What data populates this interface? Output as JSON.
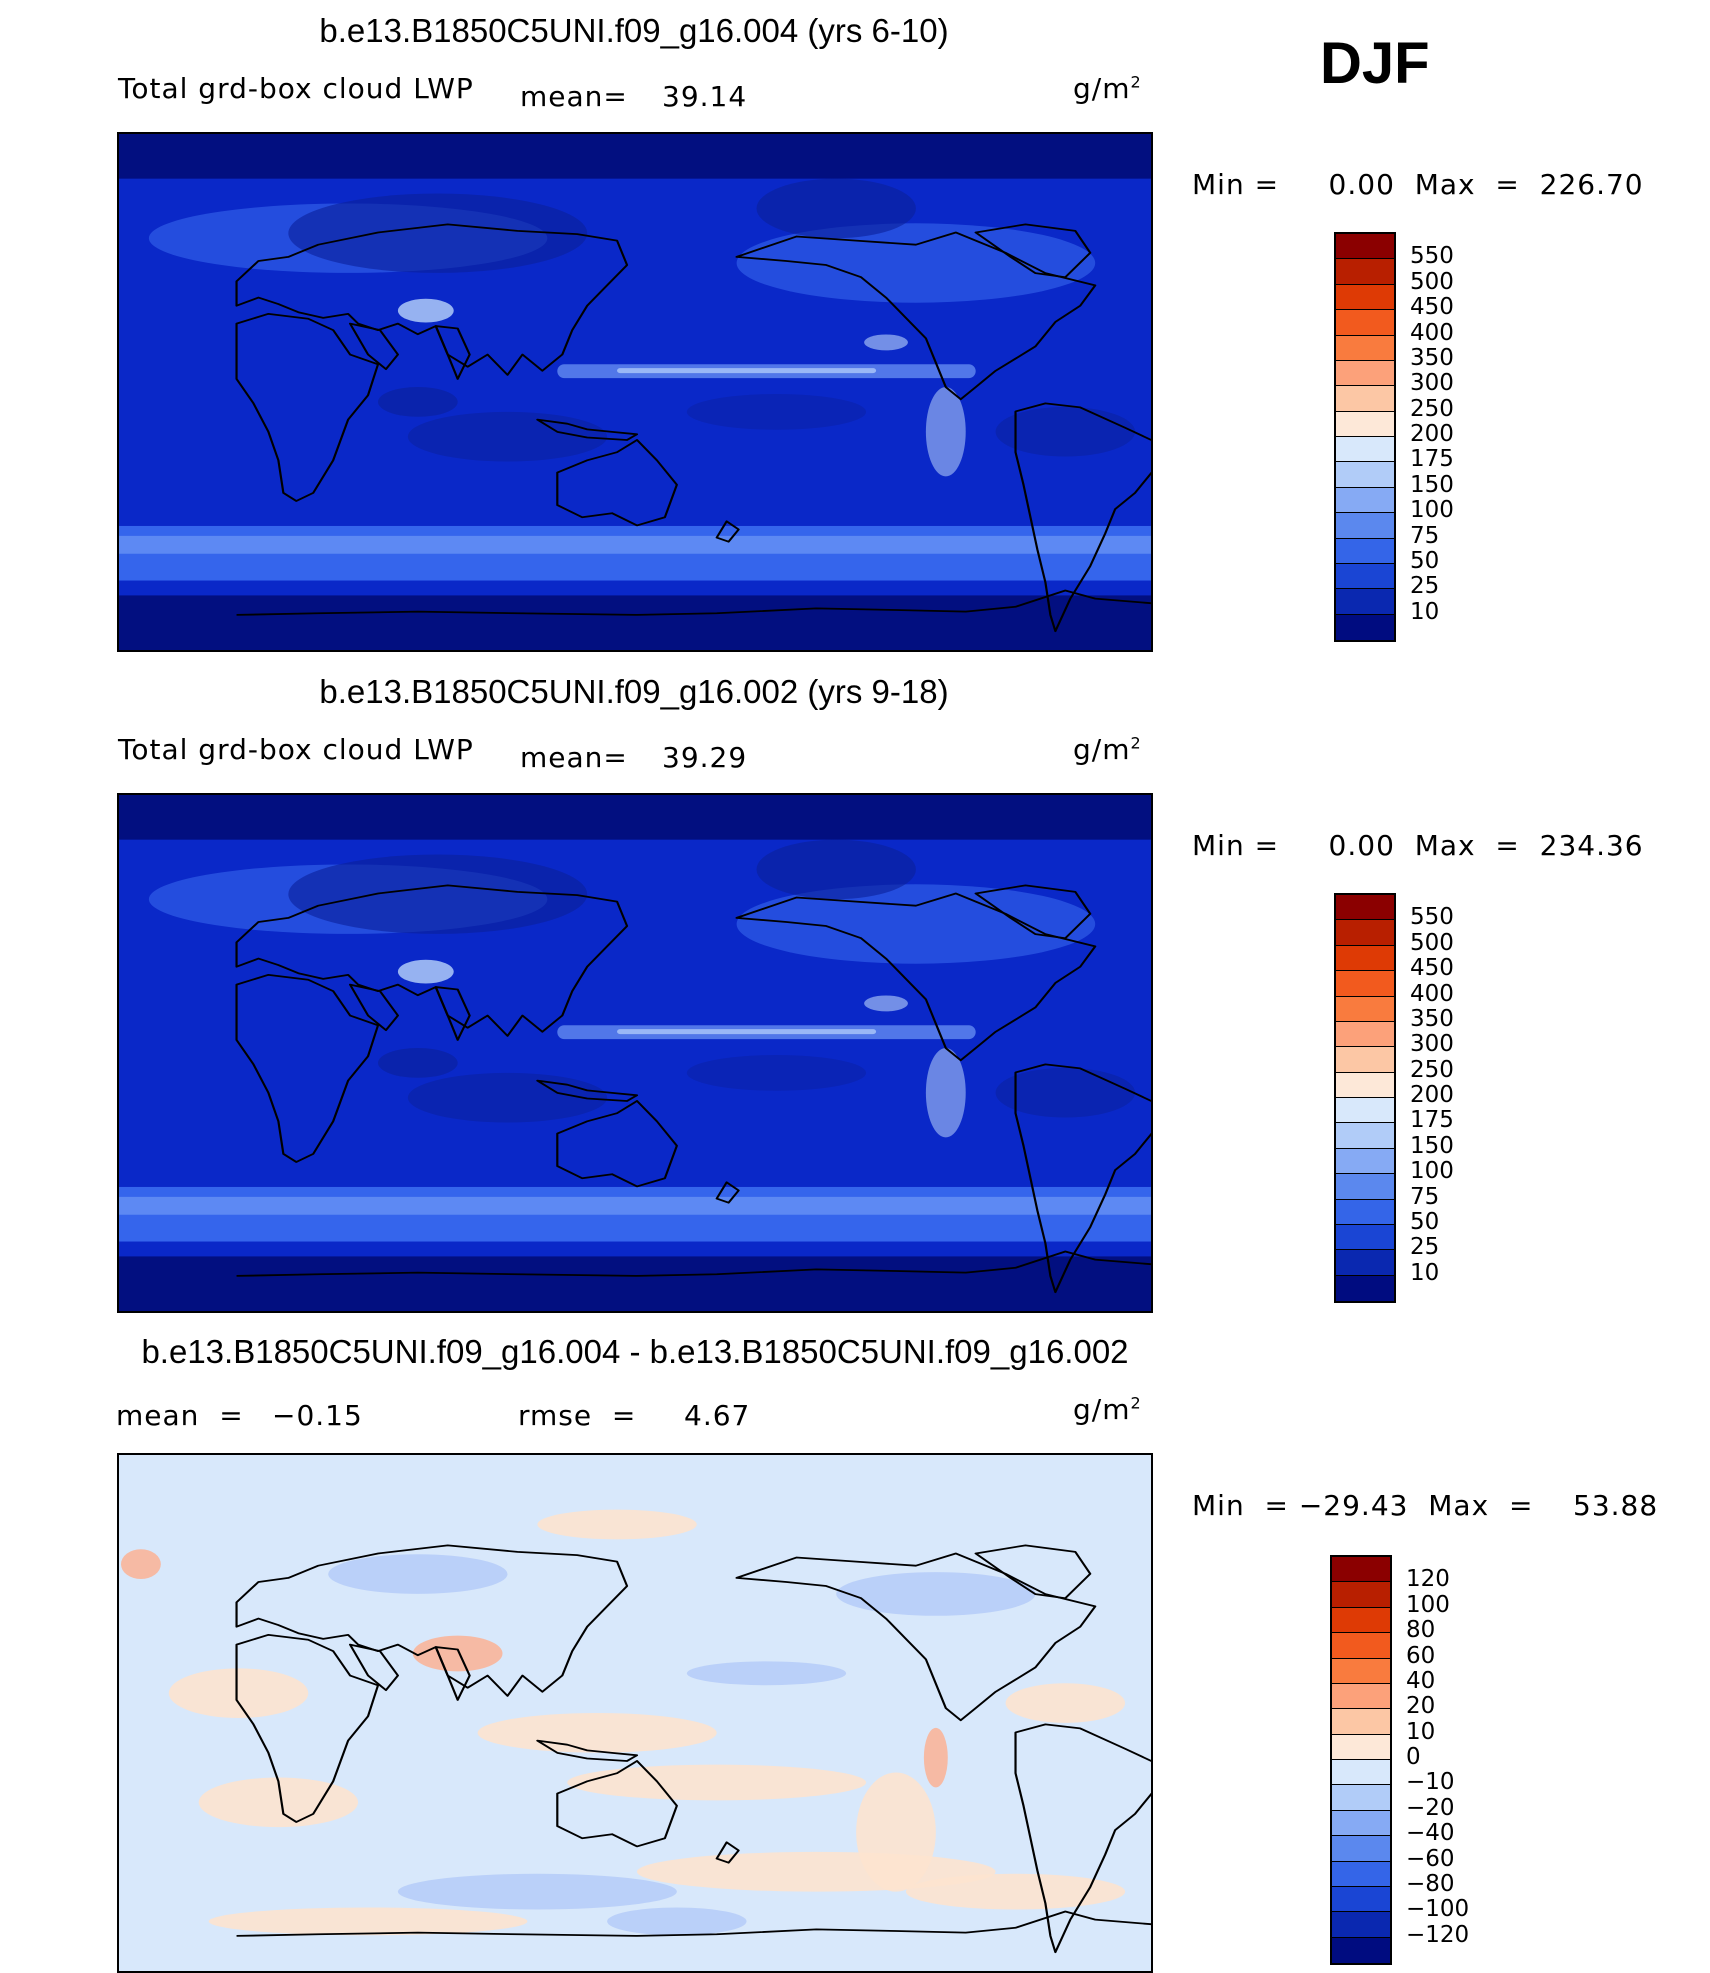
{
  "season": "DJF",
  "panels": [
    {
      "title": "b.e13.B1850C5UNI.f09_g16.004 (yrs 6-10)",
      "variable": "Total grd-box cloud LWP",
      "stats_label": "mean=",
      "stats_value": "39.14",
      "units": "g/m",
      "units_sup": "2",
      "minmax": "Min =     0.00  Max  =  226.70",
      "colorbar": {
        "labels": [
          "550",
          "500",
          "450",
          "400",
          "350",
          "300",
          "250",
          "200",
          "175",
          "150",
          "100",
          "75",
          "50",
          "25",
          "10"
        ],
        "colors": [
          "#8b0000",
          "#b81f00",
          "#de3a05",
          "#f25a1e",
          "#f97b3e",
          "#fca17a",
          "#fcc7a5",
          "#fde8d8",
          "#d8e8fb",
          "#b1ccf8",
          "#86aaf4",
          "#5b88ee",
          "#3465e8",
          "#1a45d4",
          "#0a28b0",
          "#000c80"
        ]
      }
    },
    {
      "title": "b.e13.B1850C5UNI.f09_g16.002 (yrs 9-18)",
      "variable": "Total grd-box cloud LWP",
      "stats_label": "mean=",
      "stats_value": "39.29",
      "units": "g/m",
      "units_sup": "2",
      "minmax": "Min =     0.00  Max  =  234.36",
      "colorbar": {
        "labels": [
          "550",
          "500",
          "450",
          "400",
          "350",
          "300",
          "250",
          "200",
          "175",
          "150",
          "100",
          "75",
          "50",
          "25",
          "10"
        ],
        "colors": [
          "#8b0000",
          "#b81f00",
          "#de3a05",
          "#f25a1e",
          "#f97b3e",
          "#fca17a",
          "#fcc7a5",
          "#fde8d8",
          "#d8e8fb",
          "#b1ccf8",
          "#86aaf4",
          "#5b88ee",
          "#3465e8",
          "#1a45d4",
          "#0a28b0",
          "#000c80"
        ]
      }
    },
    {
      "title": "b.e13.B1850C5UNI.f09_g16.004 - b.e13.B1850C5UNI.f09_g16.002",
      "stats_label": "mean  =",
      "stats_value": "−0.15",
      "rmse_label": "rmse  =",
      "rmse_value": "4.67",
      "units": "g/m",
      "units_sup": "2",
      "minmax": "Min  = −29.43  Max  =    53.88",
      "colorbar": {
        "labels": [
          "120",
          "100",
          "80",
          "60",
          "40",
          "20",
          "10",
          "0",
          "−10",
          "−20",
          "−40",
          "−60",
          "−80",
          "−100",
          "−120"
        ],
        "colors": [
          "#8b0000",
          "#b81f00",
          "#de3a05",
          "#f25a1e",
          "#f97b3e",
          "#fca17a",
          "#fcc7a5",
          "#fde8d8",
          "#d8e8fb",
          "#b1ccf8",
          "#86aaf4",
          "#5b88ee",
          "#3465e8",
          "#1a45d4",
          "#0a28b0",
          "#000c80"
        ]
      }
    }
  ],
  "map_colors": {
    "base_ocean": "#0a28c8",
    "polar": "#020f80",
    "dark_land": "#0a1f9a",
    "band": "#3a6cf0",
    "band_light": "#6f98f6",
    "bright": "#b9d4fb",
    "diff_base": "#d8e8fb",
    "diff_pos": "#fde3cf",
    "diff_pos2": "#f9b59a",
    "diff_neg": "#b7cdf8",
    "coast": "#000000"
  }
}
